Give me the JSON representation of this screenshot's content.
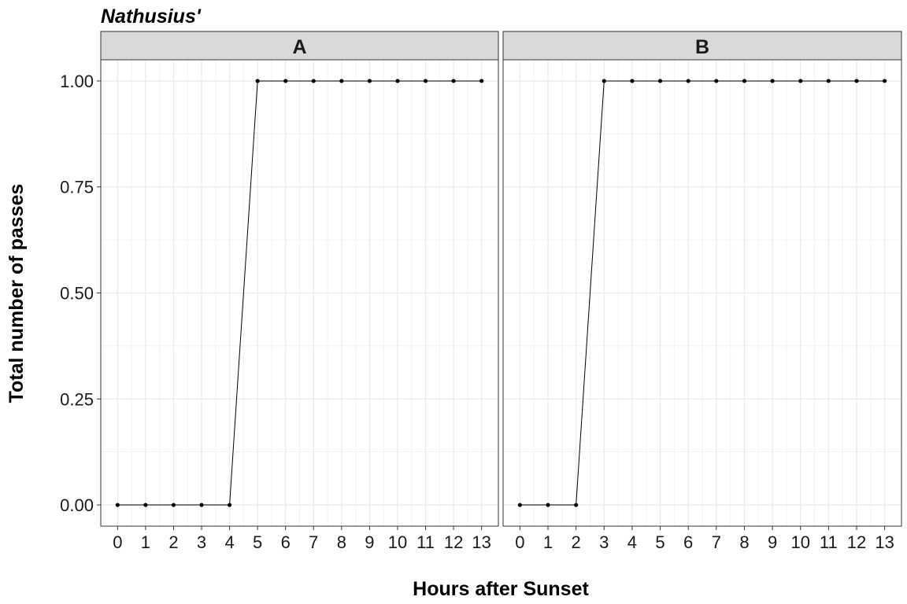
{
  "chart_data": {
    "type": "line",
    "title": "Nathusius'",
    "xlabel": "Hours after Sunset",
    "ylabel": "Total number of passes",
    "x": [
      0,
      1,
      2,
      3,
      4,
      5,
      6,
      7,
      8,
      9,
      10,
      11,
      12,
      13
    ],
    "xlim": [
      -0.6,
      13.6
    ],
    "ylim": [
      -0.05,
      1.05
    ],
    "y_ticks": [
      "0.00",
      "0.25",
      "0.50",
      "0.75",
      "1.00"
    ],
    "x_ticks": [
      "0",
      "1",
      "2",
      "3",
      "4",
      "5",
      "6",
      "7",
      "8",
      "9",
      "10",
      "11",
      "12",
      "13"
    ],
    "grid": true,
    "panels": [
      {
        "label": "A",
        "values": [
          0,
          0,
          0,
          0,
          0,
          1,
          1,
          1,
          1,
          1,
          1,
          1,
          1,
          1
        ]
      },
      {
        "label": "B",
        "values": [
          0,
          0,
          0,
          1,
          1,
          1,
          1,
          1,
          1,
          1,
          1,
          1,
          1,
          1
        ]
      }
    ],
    "colors": {
      "line": "#000000",
      "grid": "#ebebeb",
      "strip": "#d9d9d9",
      "border": "#333333"
    }
  }
}
